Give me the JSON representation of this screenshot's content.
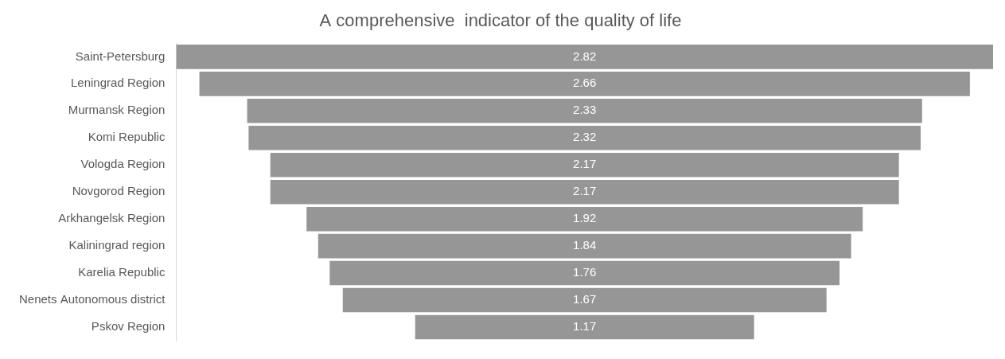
{
  "chart_data": {
    "type": "funnel",
    "title": "A comprehensive  indicator of the quality of life",
    "categories": [
      "Saint-Petersburg",
      "Leningrad Region",
      "Murmansk Region",
      "Komi Republic",
      "Vologda Region",
      "Novgorod Region",
      "Arkhangelsk Region",
      "Kaliningrad region",
      "Karelia Republic",
      "Nenets Autonomous district",
      "Pskov Region"
    ],
    "values": [
      2.82,
      2.66,
      2.33,
      2.32,
      2.17,
      2.17,
      1.92,
      1.84,
      1.76,
      1.67,
      1.17
    ],
    "color": "#969696",
    "orientation": "horizontal",
    "data_labels": true,
    "tick_labels": "y",
    "grid": false
  }
}
